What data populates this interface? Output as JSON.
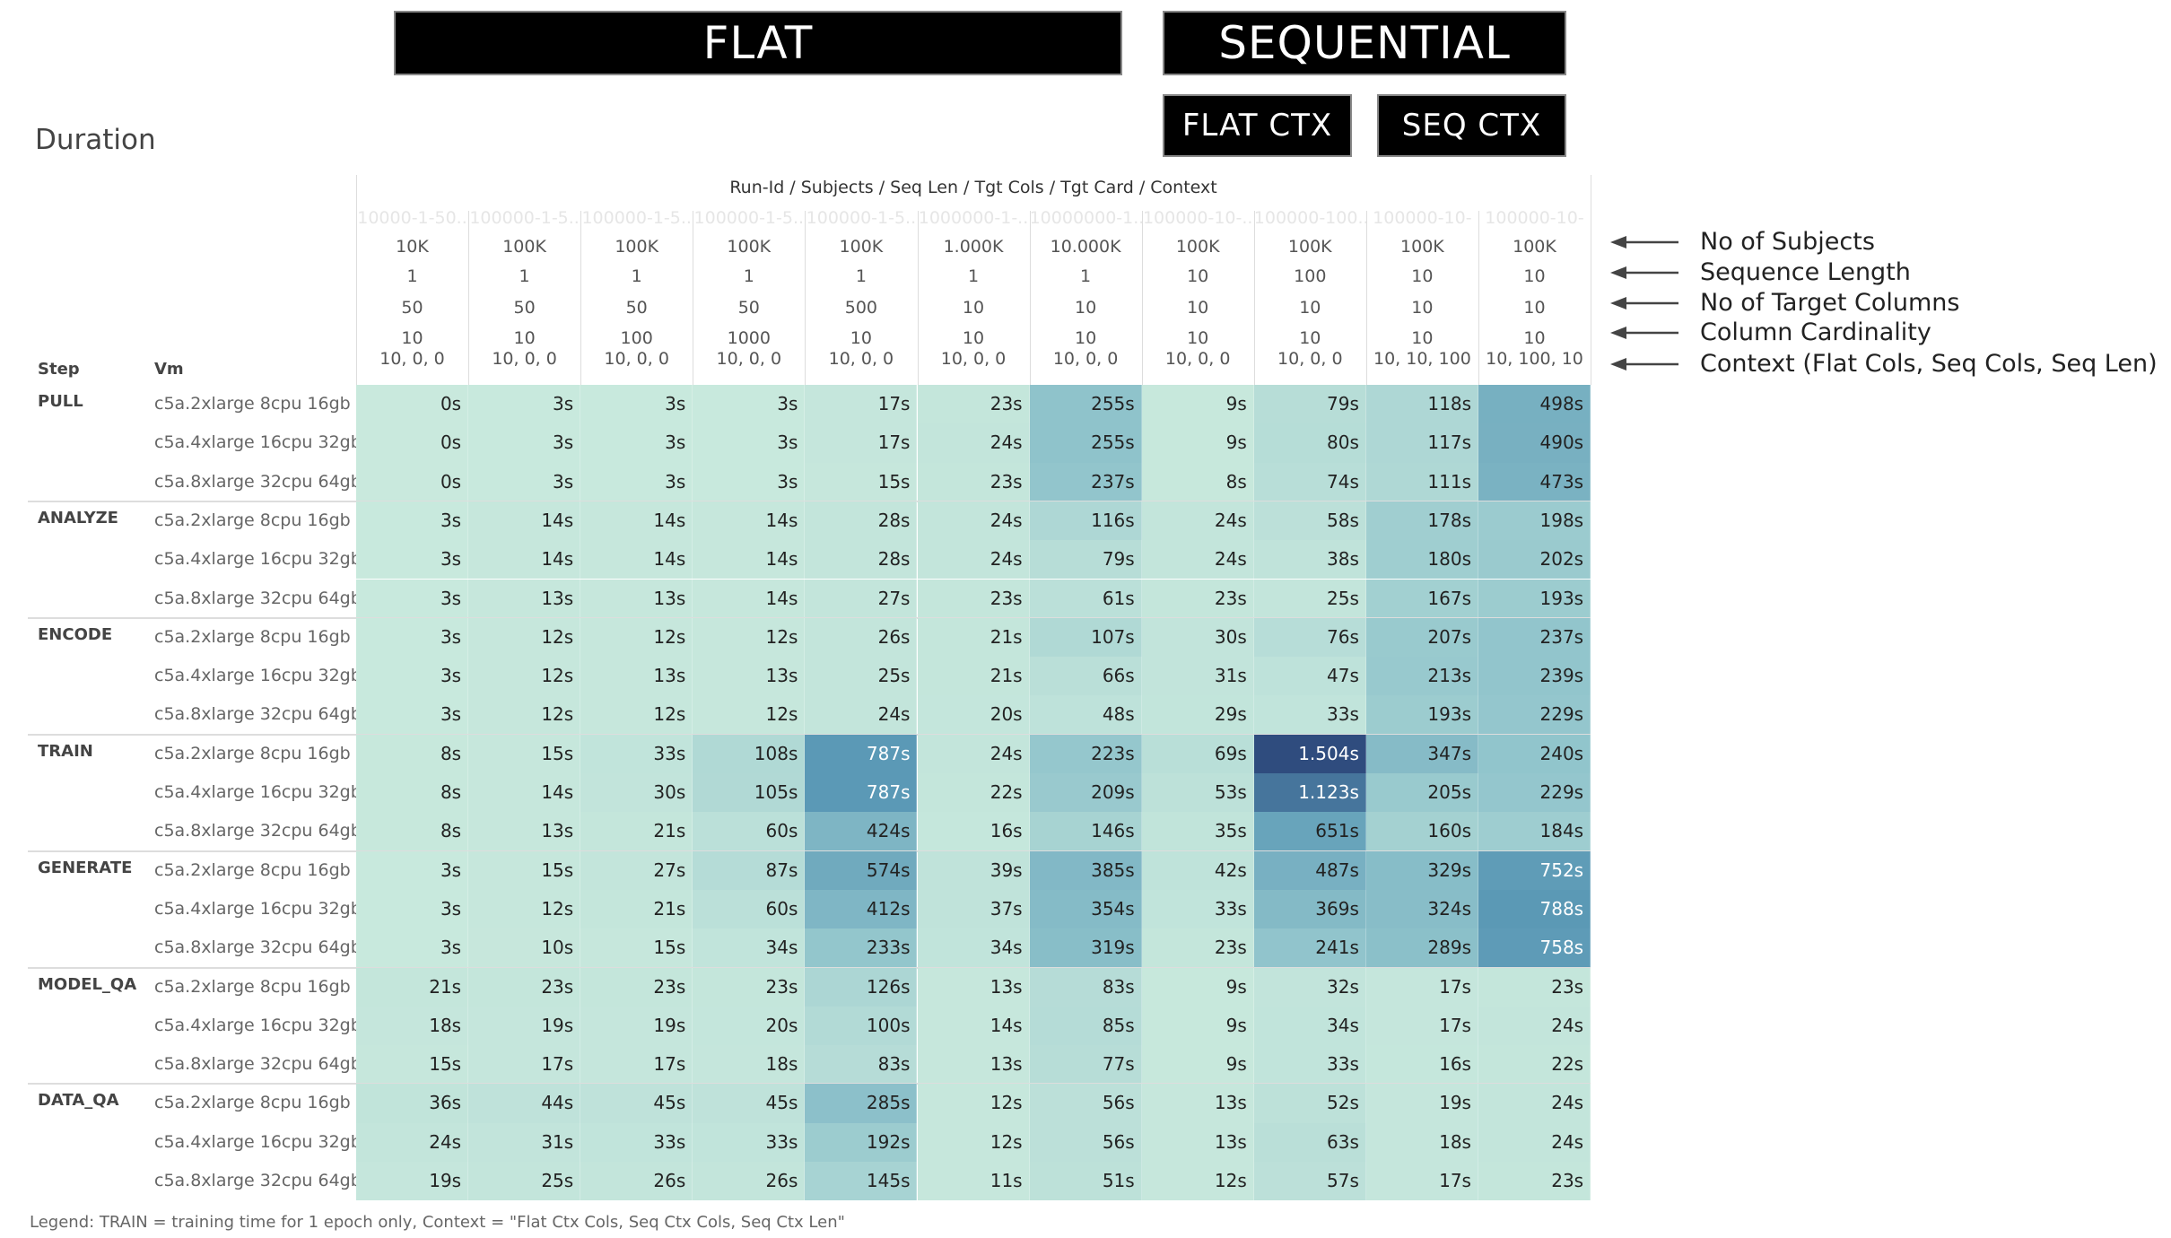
{
  "header": {
    "flat": "FLAT",
    "sequential": "SEQUENTIAL",
    "flat_ctx": "FLAT CTX",
    "seq_ctx": "SEQ CTX"
  },
  "title": "Duration",
  "legend": "Legend: TRAIN = training time for 1 epoch only, Context = \"Flat Ctx Cols, Seq Ctx Cols, Seq Ctx Len\"",
  "annotations": [
    {
      "label": "No of Subjects",
      "icon": "arrow-left-icon"
    },
    {
      "label": "Sequence Length",
      "icon": "arrow-left-icon"
    },
    {
      "label": "No of Target Columns",
      "icon": "arrow-left-icon"
    },
    {
      "label": "Column Cardinality",
      "icon": "arrow-left-icon"
    },
    {
      "label": "Context (Flat Cols, Seq Cols, Seq Len)",
      "icon": "arrow-left-icon"
    }
  ],
  "chart_data": {
    "type": "heatmap",
    "column_header_title": "Run-Id / Subjects / Seq Len / Tgt Cols / Tgt Card / Context",
    "row_headers": [
      "Step",
      "Vm"
    ],
    "columns": [
      {
        "run_id": "10000-1-50..",
        "subjects": "10K",
        "seq_len": "1",
        "tgt_cols": "50",
        "tgt_card": "10",
        "context": "10, 0, 0"
      },
      {
        "run_id": "100000-1-5..",
        "subjects": "100K",
        "seq_len": "1",
        "tgt_cols": "50",
        "tgt_card": "10",
        "context": "10, 0, 0"
      },
      {
        "run_id": "100000-1-5..",
        "subjects": "100K",
        "seq_len": "1",
        "tgt_cols": "50",
        "tgt_card": "100",
        "context": "10, 0, 0"
      },
      {
        "run_id": "100000-1-5..",
        "subjects": "100K",
        "seq_len": "1",
        "tgt_cols": "50",
        "tgt_card": "1000",
        "context": "10, 0, 0"
      },
      {
        "run_id": "100000-1-5..",
        "subjects": "100K",
        "seq_len": "1",
        "tgt_cols": "500",
        "tgt_card": "10",
        "context": "10, 0, 0"
      },
      {
        "run_id": "1000000-1-..",
        "subjects": "1.000K",
        "seq_len": "1",
        "tgt_cols": "10",
        "tgt_card": "10",
        "context": "10, 0, 0"
      },
      {
        "run_id": "10000000-1..",
        "subjects": "10.000K",
        "seq_len": "1",
        "tgt_cols": "10",
        "tgt_card": "10",
        "context": "10, 0, 0"
      },
      {
        "run_id": "100000-10-..",
        "subjects": "100K",
        "seq_len": "10",
        "tgt_cols": "10",
        "tgt_card": "10",
        "context": "10, 0, 0"
      },
      {
        "run_id": "100000-100..",
        "subjects": "100K",
        "seq_len": "100",
        "tgt_cols": "10",
        "tgt_card": "10",
        "context": "10, 0, 0"
      },
      {
        "run_id": "100000-10-",
        "subjects": "100K",
        "seq_len": "10",
        "tgt_cols": "10",
        "tgt_card": "10",
        "context": "10, 10, 100"
      },
      {
        "run_id": "100000-10-",
        "subjects": "100K",
        "seq_len": "10",
        "tgt_cols": "10",
        "tgt_card": "10",
        "context": "10, 100, 10"
      }
    ],
    "steps": [
      {
        "step": "PULL",
        "rows": [
          {
            "vm": "c5a.2xlarge 8cpu 16gb",
            "values": [
              "0s",
              "3s",
              "3s",
              "3s",
              "17s",
              "23s",
              "255s",
              "9s",
              "79s",
              "118s",
              "498s"
            ]
          },
          {
            "vm": "c5a.4xlarge 16cpu 32gb",
            "values": [
              "0s",
              "3s",
              "3s",
              "3s",
              "17s",
              "24s",
              "255s",
              "9s",
              "80s",
              "117s",
              "490s"
            ]
          },
          {
            "vm": "c5a.8xlarge 32cpu 64gb",
            "values": [
              "0s",
              "3s",
              "3s",
              "3s",
              "15s",
              "23s",
              "237s",
              "8s",
              "74s",
              "111s",
              "473s"
            ]
          }
        ]
      },
      {
        "step": "ANALYZE",
        "rows": [
          {
            "vm": "c5a.2xlarge 8cpu 16gb",
            "values": [
              "3s",
              "14s",
              "14s",
              "14s",
              "28s",
              "24s",
              "116s",
              "24s",
              "58s",
              "178s",
              "198s"
            ]
          },
          {
            "vm": "c5a.4xlarge 16cpu 32gb",
            "values": [
              "3s",
              "14s",
              "14s",
              "14s",
              "28s",
              "24s",
              "79s",
              "24s",
              "38s",
              "180s",
              "202s"
            ]
          },
          {
            "vm": "c5a.8xlarge 32cpu 64gb",
            "values": [
              "3s",
              "13s",
              "13s",
              "14s",
              "27s",
              "23s",
              "61s",
              "23s",
              "25s",
              "167s",
              "193s"
            ]
          }
        ]
      },
      {
        "step": "ENCODE",
        "rows": [
          {
            "vm": "c5a.2xlarge 8cpu 16gb",
            "values": [
              "3s",
              "12s",
              "12s",
              "12s",
              "26s",
              "21s",
              "107s",
              "30s",
              "76s",
              "207s",
              "237s"
            ]
          },
          {
            "vm": "c5a.4xlarge 16cpu 32gb",
            "values": [
              "3s",
              "12s",
              "13s",
              "13s",
              "25s",
              "21s",
              "66s",
              "31s",
              "47s",
              "213s",
              "239s"
            ]
          },
          {
            "vm": "c5a.8xlarge 32cpu 64gb",
            "values": [
              "3s",
              "12s",
              "12s",
              "12s",
              "24s",
              "20s",
              "48s",
              "29s",
              "33s",
              "193s",
              "229s"
            ]
          }
        ]
      },
      {
        "step": "TRAIN",
        "rows": [
          {
            "vm": "c5a.2xlarge 8cpu 16gb",
            "values": [
              "8s",
              "15s",
              "33s",
              "108s",
              "787s",
              "24s",
              "223s",
              "69s",
              "1.504s",
              "347s",
              "240s"
            ]
          },
          {
            "vm": "c5a.4xlarge 16cpu 32gb",
            "values": [
              "8s",
              "14s",
              "30s",
              "105s",
              "787s",
              "22s",
              "209s",
              "53s",
              "1.123s",
              "205s",
              "229s"
            ]
          },
          {
            "vm": "c5a.8xlarge 32cpu 64gb",
            "values": [
              "8s",
              "13s",
              "21s",
              "60s",
              "424s",
              "16s",
              "146s",
              "35s",
              "651s",
              "160s",
              "184s"
            ]
          }
        ]
      },
      {
        "step": "GENERATE",
        "rows": [
          {
            "vm": "c5a.2xlarge 8cpu 16gb",
            "values": [
              "3s",
              "15s",
              "27s",
              "87s",
              "574s",
              "39s",
              "385s",
              "42s",
              "487s",
              "329s",
              "752s"
            ]
          },
          {
            "vm": "c5a.4xlarge 16cpu 32gb",
            "values": [
              "3s",
              "12s",
              "21s",
              "60s",
              "412s",
              "37s",
              "354s",
              "33s",
              "369s",
              "324s",
              "788s"
            ]
          },
          {
            "vm": "c5a.8xlarge 32cpu 64gb",
            "values": [
              "3s",
              "10s",
              "15s",
              "34s",
              "233s",
              "34s",
              "319s",
              "23s",
              "241s",
              "289s",
              "758s"
            ]
          }
        ]
      },
      {
        "step": "MODEL_QA",
        "rows": [
          {
            "vm": "c5a.2xlarge 8cpu 16gb",
            "values": [
              "21s",
              "23s",
              "23s",
              "23s",
              "126s",
              "13s",
              "83s",
              "9s",
              "32s",
              "17s",
              "23s"
            ]
          },
          {
            "vm": "c5a.4xlarge 16cpu 32gb",
            "values": [
              "18s",
              "19s",
              "19s",
              "20s",
              "100s",
              "14s",
              "85s",
              "9s",
              "34s",
              "17s",
              "24s"
            ]
          },
          {
            "vm": "c5a.8xlarge 32cpu 64gb",
            "values": [
              "15s",
              "17s",
              "17s",
              "18s",
              "83s",
              "13s",
              "77s",
              "9s",
              "33s",
              "16s",
              "22s"
            ]
          }
        ]
      },
      {
        "step": "DATA_QA",
        "rows": [
          {
            "vm": "c5a.2xlarge 8cpu 16gb",
            "values": [
              "36s",
              "44s",
              "45s",
              "45s",
              "285s",
              "12s",
              "56s",
              "13s",
              "52s",
              "19s",
              "24s"
            ]
          },
          {
            "vm": "c5a.4xlarge 16cpu 32gb",
            "values": [
              "24s",
              "31s",
              "33s",
              "33s",
              "192s",
              "12s",
              "56s",
              "13s",
              "63s",
              "18s",
              "24s"
            ]
          },
          {
            "vm": "c5a.8xlarge 32cpu 64gb",
            "values": [
              "19s",
              "25s",
              "26s",
              "26s",
              "145s",
              "11s",
              "51s",
              "12s",
              "57s",
              "17s",
              "23s"
            ]
          }
        ]
      }
    ],
    "color_scale": {
      "low": "#c9e9dd",
      "mid": "#8fc3cb",
      "high": "#5a98b5",
      "max": "#2f4c7e",
      "light_text": "#ffffff",
      "dark_text": "#222222"
    }
  }
}
